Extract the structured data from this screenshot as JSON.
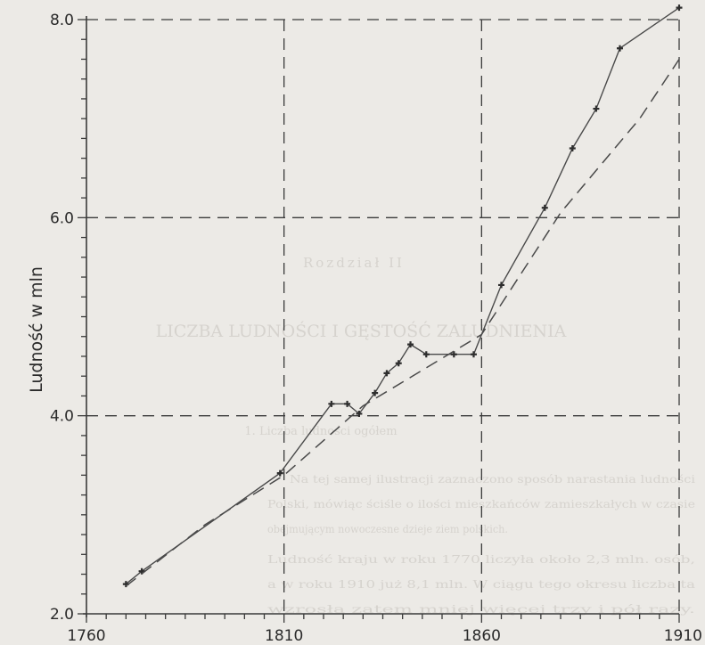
{
  "chart_data": {
    "type": "line",
    "title": "",
    "xlabel": "",
    "ylabel": "Ludność w mln",
    "xlim": [
      1760,
      1910
    ],
    "ylim": [
      2.0,
      8.0
    ],
    "x_ticks": [
      1760,
      1810,
      1860,
      1910
    ],
    "x_tick_labels": [
      "1760",
      "1810",
      "1860",
      "1910"
    ],
    "y_ticks": [
      2.0,
      4.0,
      6.0,
      8.0
    ],
    "y_tick_labels": [
      "2.0",
      "4.0",
      "6.0",
      "8.0"
    ],
    "grid": "dashed",
    "series": [
      {
        "style": "solid-with-markers",
        "x": [
          1770,
          1774,
          1809,
          1822,
          1826,
          1829,
          1833,
          1836,
          1839,
          1842,
          1846,
          1853,
          1858,
          1865,
          1876,
          1883,
          1889,
          1895,
          1910
        ],
        "y": [
          2.3,
          2.43,
          3.42,
          4.12,
          4.12,
          4.02,
          4.23,
          4.43,
          4.53,
          4.72,
          4.62,
          4.62,
          4.62,
          5.32,
          6.1,
          6.7,
          7.1,
          7.71,
          8.12
        ]
      },
      {
        "style": "dashed",
        "x": [
          1770,
          1790,
          1810,
          1830,
          1860,
          1880,
          1900,
          1910
        ],
        "y": [
          2.28,
          2.9,
          3.4,
          4.1,
          4.82,
          6.05,
          7.0,
          7.6
        ]
      }
    ]
  },
  "background_text": {
    "heading": "Rozdział II",
    "chapter_title": "LICZBA LUDNOŚCI I GĘSTOŚĆ ZALUDNIENIA",
    "section": "1. Liczba ludności ogółem",
    "lines": [
      "Na tej samej ilustracji zaznaczono sposób narastania ludności",
      "Polski, mówiąc ściśle o ilości mieszkańców zamieszkałych w czasie",
      "obejmującym nowoczesne dzieje ziem polskich.",
      "Ludność kraju w roku 1770 liczyła około 2,3 mln. osób,",
      "a w roku 1910 już 8,1 mln. W ciągu tego okresu liczba ta",
      "wzrosła zatem mniej więcej trzy i pół razy."
    ]
  }
}
